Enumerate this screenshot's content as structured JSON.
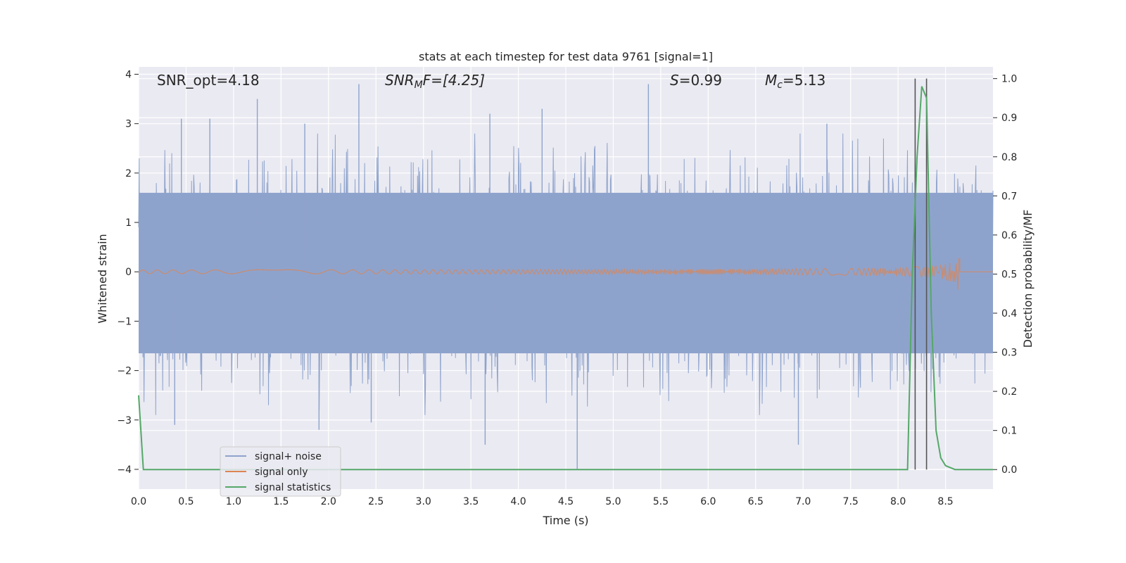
{
  "chart_data": {
    "type": "line",
    "title": "stats at each timestep for test data 9761 [signal=1]",
    "xlabel": "Time (s)",
    "ylabel": "Whitened strain",
    "y2label": "Detection probability/MF",
    "xlim": [
      0,
      9
    ],
    "ylim": [
      -4.4,
      4.15
    ],
    "y2lim": [
      -0.05,
      1.03
    ],
    "xticks": [
      "0.0",
      "0.5",
      "1.0",
      "1.5",
      "2.0",
      "2.5",
      "3.0",
      "3.5",
      "4.0",
      "4.5",
      "5.0",
      "5.5",
      "6.0",
      "6.5",
      "7.0",
      "7.5",
      "8.0",
      "8.5"
    ],
    "yticks": [
      "4",
      "3",
      "2",
      "1",
      "0",
      "−1",
      "−2",
      "−3",
      "−4"
    ],
    "y2ticks": [
      "1.0",
      "0.9",
      "0.8",
      "0.7",
      "0.6",
      "0.5",
      "0.4",
      "0.3",
      "0.2",
      "0.1",
      "0.0"
    ],
    "grid": true,
    "legend_position": "lower-left",
    "annotations": {
      "snr_opt": "SNR_opt=4.18",
      "snr_mf_main": "SNR",
      "snr_mf_sub": "M",
      "snr_mf_rest": "F=[4.25]",
      "s_main": "S",
      "s_rest": "=0.99",
      "mc_main": "M",
      "mc_sub": "c",
      "mc_rest": "=5.13"
    },
    "series": [
      {
        "name": "signal+ noise",
        "color": "#8ea3cc",
        "kind": "noise",
        "upper_band": 1.6,
        "lower_band": -1.65,
        "peaks": [
          [
            0.45,
            3.1
          ],
          [
            0.75,
            3.1
          ],
          [
            1.25,
            3.5
          ],
          [
            1.75,
            3.0
          ],
          [
            2.32,
            3.8
          ],
          [
            3.7,
            3.2
          ],
          [
            4.25,
            3.3
          ],
          [
            5.37,
            3.8
          ],
          [
            7.25,
            3.0
          ],
          [
            0.38,
            -3.1
          ],
          [
            1.9,
            -3.2
          ],
          [
            3.65,
            -3.5
          ],
          [
            4.62,
            -4.0
          ],
          [
            6.95,
            -3.5
          ],
          [
            2.45,
            -3.05
          ]
        ]
      },
      {
        "name": "signal only",
        "color": "#dd8452",
        "kind": "chirp",
        "t_end": 8.65
      },
      {
        "name": "signal statistics",
        "color": "#55a868",
        "axis": "right",
        "x": [
          0.0,
          0.05,
          0.1,
          8.1,
          8.15,
          8.2,
          8.25,
          8.3,
          8.35,
          8.4,
          8.45,
          8.5,
          8.6,
          9.0
        ],
        "y": [
          0.19,
          0.0,
          0.0,
          0.0,
          0.5,
          0.8,
          0.98,
          0.95,
          0.4,
          0.1,
          0.03,
          0.01,
          0.0,
          0.0
        ]
      }
    ],
    "vlines": [
      8.18,
      8.3
    ]
  }
}
